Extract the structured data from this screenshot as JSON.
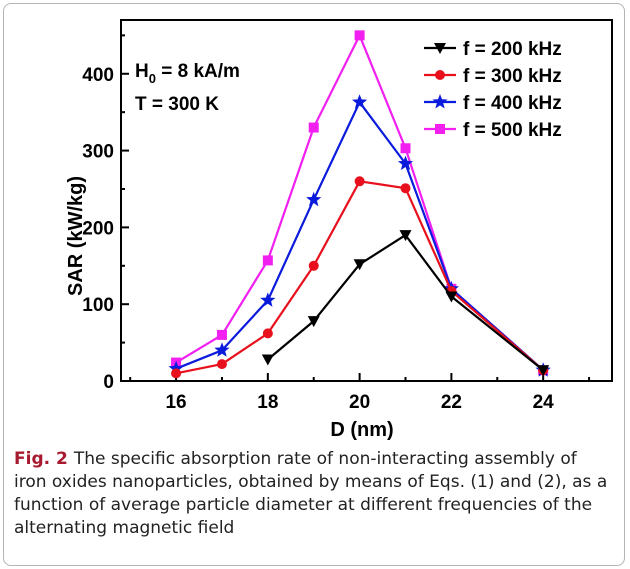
{
  "chart_data": {
    "type": "line",
    "xlabel": "D  (nm)",
    "ylabel": "SAR  (kW/kg)",
    "xlim": [
      14.8,
      25.5
    ],
    "ylim": [
      0,
      470
    ],
    "x_ticks": [
      16,
      18,
      20,
      22,
      24
    ],
    "x_minor_ticks": [
      15,
      17,
      19,
      21,
      23,
      25
    ],
    "y_ticks": [
      0,
      100,
      200,
      300,
      400
    ],
    "y_minor_ticks": [
      50,
      150,
      250,
      350,
      450
    ],
    "legend_position": "top-right",
    "grid": false,
    "annotations": {
      "field_main": "H",
      "field_sub": "0",
      "field_value": " = 8 kA/m",
      "temperature": "T = 300 K"
    },
    "series": [
      {
        "name": "f = 200 kHz",
        "color": "#000000",
        "marker": "triangle-down",
        "x": [
          18,
          19,
          20,
          21,
          22,
          24
        ],
        "values": [
          28,
          78,
          152,
          190,
          110,
          14
        ]
      },
      {
        "name": "f = 300 kHz",
        "color": "#e8101c",
        "marker": "circle",
        "x": [
          16,
          17,
          18,
          19,
          20,
          21,
          22,
          24
        ],
        "values": [
          10,
          22,
          62,
          150,
          260,
          251,
          117,
          14
        ]
      },
      {
        "name": "f = 400 kHz",
        "color": "#0b1bdc",
        "marker": "star",
        "x": [
          16,
          17,
          18,
          19,
          20,
          21,
          22,
          24
        ],
        "values": [
          16,
          40,
          105,
          236,
          363,
          283,
          120,
          14
        ]
      },
      {
        "name": "f = 500 kHz",
        "color": "#f11ff0",
        "marker": "square",
        "x": [
          16,
          17,
          18,
          19,
          20,
          21,
          22,
          24
        ],
        "values": [
          24,
          60,
          157,
          330,
          450,
          303,
          120,
          14
        ]
      }
    ]
  },
  "caption": {
    "label": "Fig. 2",
    "text": "The specific absorption rate of non-interacting assembly of iron oxides nanoparticles, obtained by means of Eqs. (1) and (2), as a function of average particle diameter at different frequencies of the alternating magnetic field"
  }
}
